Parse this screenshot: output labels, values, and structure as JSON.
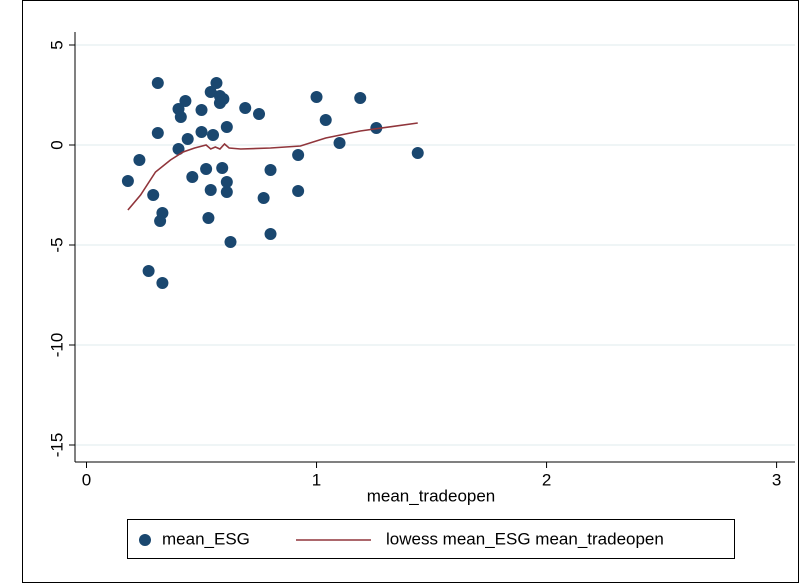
{
  "chart_data": {
    "type": "scatter",
    "x_label": "mean_tradeopen",
    "xlim": [
      -0.05,
      3.08
    ],
    "xticks": [
      0,
      1,
      2,
      3
    ],
    "ylim": [
      -15.85,
      5.65
    ],
    "yticks": [
      -15,
      -10,
      -5,
      0,
      5
    ],
    "grid": true,
    "legend": "bottom",
    "series": [
      {
        "name": "mean_ESG",
        "mode": "markers",
        "color": "#1a476f",
        "x": [
          0.18,
          0.23,
          0.29,
          0.27,
          0.31,
          0.31,
          0.33,
          0.32,
          0.33,
          0.4,
          0.4,
          0.41,
          0.43,
          0.44,
          0.46,
          0.5,
          0.5,
          0.52,
          0.53,
          0.54,
          0.54,
          0.55,
          0.565,
          0.58,
          0.58,
          0.59,
          0.595,
          0.61,
          0.61,
          0.61,
          0.626,
          0.69,
          0.75,
          0.77,
          0.8,
          0.8,
          0.92,
          0.92,
          1.0,
          1.04,
          1.1,
          1.19,
          1.26,
          1.44
        ],
        "values": [
          -1.8,
          -0.75,
          -2.5,
          -6.3,
          3.1,
          0.6,
          -3.4,
          -3.8,
          -6.9,
          -0.2,
          1.8,
          1.4,
          2.2,
          0.3,
          -1.6,
          0.65,
          1.75,
          -1.2,
          -3.65,
          -2.25,
          2.65,
          0.5,
          3.1,
          2.1,
          2.45,
          -1.15,
          2.3,
          -2.35,
          -1.85,
          0.9,
          -4.85,
          1.85,
          1.55,
          -2.65,
          -1.25,
          -4.45,
          -0.5,
          -2.3,
          2.4,
          1.25,
          0.1,
          2.35,
          0.85,
          -0.4
        ]
      },
      {
        "name": "lowess mean_ESG mean_tradeopen",
        "mode": "line",
        "color": "#90353b",
        "x": [
          0.18,
          0.235,
          0.3,
          0.365,
          0.42,
          0.47,
          0.52,
          0.54,
          0.56,
          0.58,
          0.6,
          0.62,
          0.67,
          0.8,
          0.93,
          1.04,
          1.19,
          1.44
        ],
        "values": [
          -3.25,
          -2.5,
          -1.35,
          -0.75,
          -0.35,
          -0.15,
          0,
          -0.2,
          -0.1,
          -0.2,
          0.05,
          -0.15,
          -0.2,
          -0.15,
          -0.05,
          0.35,
          0.7,
          1.1
        ]
      }
    ]
  }
}
